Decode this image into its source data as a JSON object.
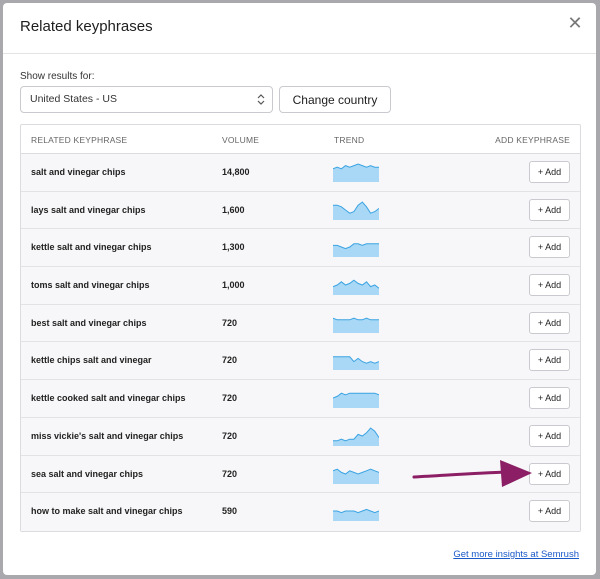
{
  "modal": {
    "title": "Related keyphrases",
    "close_icon": "close-icon"
  },
  "filter": {
    "label": "Show results for:",
    "country_value": "United States - US",
    "change_button": "Change country"
  },
  "table": {
    "headers": {
      "keyphrase": "RELATED KEYPHRASE",
      "volume": "VOLUME",
      "trend": "TREND",
      "add": "ADD KEYPHRASE"
    },
    "rows": [
      {
        "keyphrase": "salt and vinegar chips",
        "volume": "14,800",
        "add": "+ Add",
        "trend": [
          7,
          8,
          7,
          9,
          8,
          9,
          10,
          9,
          8,
          9,
          8,
          8
        ]
      },
      {
        "keyphrase": "lays salt and vinegar chips",
        "volume": "1,600",
        "add": "+ Add",
        "trend": [
          8,
          8,
          7,
          5,
          3,
          4,
          8,
          10,
          7,
          3,
          4,
          6
        ]
      },
      {
        "keyphrase": "kettle salt and vinegar chips",
        "volume": "1,300",
        "add": "+ Add",
        "trend": [
          6,
          6,
          5,
          4,
          5,
          7,
          7,
          6,
          7,
          7,
          7,
          7
        ]
      },
      {
        "keyphrase": "toms salt and vinegar chips",
        "volume": "1,000",
        "add": "+ Add",
        "trend": [
          4,
          5,
          7,
          5,
          6,
          8,
          6,
          5,
          7,
          4,
          5,
          3
        ]
      },
      {
        "keyphrase": "best salt and vinegar chips",
        "volume": "720",
        "add": "+ Add",
        "trend": [
          8,
          7,
          7,
          7,
          7,
          8,
          7,
          7,
          8,
          7,
          7,
          7
        ]
      },
      {
        "keyphrase": "kettle chips salt and vinegar",
        "volume": "720",
        "add": "+ Add",
        "trend": [
          7,
          7,
          7,
          7,
          7,
          4,
          6,
          4,
          3,
          4,
          3,
          4
        ]
      },
      {
        "keyphrase": "kettle cooked salt and vinegar chips",
        "volume": "720",
        "add": "+ Add",
        "trend": [
          5,
          6,
          8,
          7,
          8,
          8,
          8,
          8,
          8,
          8,
          8,
          7
        ]
      },
      {
        "keyphrase": "miss vickie's salt and vinegar chips",
        "volume": "720",
        "add": "+ Add",
        "trend": [
          2,
          2,
          3,
          2,
          3,
          3,
          6,
          5,
          7,
          10,
          8,
          4
        ]
      },
      {
        "keyphrase": "sea salt and vinegar chips",
        "volume": "720",
        "add": "+ Add",
        "trend": [
          7,
          8,
          6,
          5,
          7,
          6,
          5,
          6,
          7,
          8,
          7,
          6
        ]
      },
      {
        "keyphrase": "how to make salt and vinegar chips",
        "volume": "590",
        "add": "+ Add",
        "trend": [
          5,
          5,
          4,
          5,
          5,
          5,
          4,
          5,
          6,
          5,
          4,
          5
        ]
      }
    ]
  },
  "footer": {
    "link": "Get more insights at Semrush"
  },
  "colors": {
    "link": "#1a5ac8",
    "trend_fill": "#a8d8f5",
    "trend_line": "#3aa3e3",
    "arrow": "#8b1e64"
  }
}
